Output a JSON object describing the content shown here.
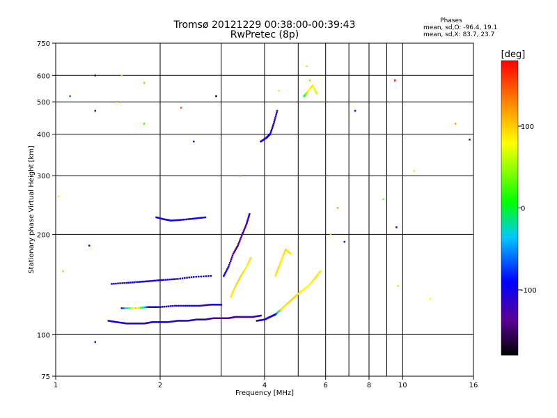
{
  "chart_data": {
    "type": "scatter",
    "title": "Tromsø 20121229 00:38:00-00:39:43",
    "subtitle": "RwPretec (8p)",
    "xlabel": "Frequency [MHz]",
    "ylabel": "Stationary phase Virtual Height [km]",
    "x_scale": "log",
    "y_scale": "log",
    "xlim": [
      1,
      16
    ],
    "ylim": [
      75,
      750
    ],
    "x_ticks": [
      1,
      2,
      4,
      6,
      8,
      10,
      16
    ],
    "x_tick_labels": [
      "1",
      "2",
      "4",
      "6",
      "8",
      "10",
      "16"
    ],
    "x_grid": [
      1,
      2,
      3,
      4,
      5,
      6,
      7,
      8,
      9,
      10,
      16
    ],
    "y_ticks": [
      75,
      100,
      200,
      300,
      400,
      500,
      600,
      750
    ],
    "y_tick_labels": [
      "75",
      "100",
      "200",
      "300",
      "400",
      "500",
      "600",
      "750"
    ],
    "y_grid": [
      100,
      200,
      300,
      400,
      500,
      600
    ],
    "grid": true,
    "stats": {
      "heading": "Phases",
      "line_o": "mean, sd,O: -96.4, 19.1",
      "line_x": "mean, sd,X:  83.7, 23.7"
    },
    "colorbar": {
      "label": "[deg]",
      "range": [
        -180,
        180
      ],
      "ticks": [
        100,
        0,
        -100
      ],
      "tick_labels": [
        "100",
        "0",
        "-100"
      ]
    },
    "series": [
      {
        "freq": [
          1.45,
          1.6,
          1.75,
          1.9,
          2.05,
          2.25,
          2.5,
          2.8
        ],
        "height": [
          142,
          143,
          144,
          145,
          146,
          147,
          149,
          150
        ],
        "phase": [
          -100,
          -105,
          -95,
          -110,
          -100,
          -98,
          -105,
          -100
        ]
      },
      {
        "freq": [
          1.42,
          1.5,
          1.6,
          1.7,
          1.8,
          1.9,
          2.0,
          2.1,
          2.25,
          2.4,
          2.55,
          2.7,
          2.85,
          3.0,
          3.15,
          3.3,
          3.5,
          3.7,
          3.9
        ],
        "height": [
          110,
          109,
          108,
          108,
          108,
          109,
          109,
          109,
          110,
          110,
          111,
          111,
          112,
          112,
          112,
          113,
          113,
          113,
          114
        ],
        "phase": [
          -110,
          -100,
          -115,
          -105,
          -120,
          -110,
          -100,
          -115,
          -108,
          -120,
          -105,
          -115,
          -130,
          -140,
          -135,
          -125,
          -130,
          -120,
          -115
        ]
      },
      {
        "freq": [
          1.55,
          1.7,
          1.85,
          2.0,
          2.2,
          2.4,
          2.6,
          2.8,
          3.0
        ],
        "height": [
          120,
          120,
          121,
          121,
          122,
          122,
          122,
          123,
          123
        ],
        "phase": [
          -95,
          110,
          -105,
          -100,
          -110,
          -90,
          -115,
          -105,
          -100
        ]
      },
      {
        "freq": [
          1.95,
          2.05,
          2.15,
          2.3,
          2.5,
          2.7
        ],
        "height": [
          225,
          222,
          220,
          221,
          223,
          225
        ],
        "phase": [
          -95,
          -110,
          -90,
          -100,
          -95,
          -85
        ]
      },
      {
        "freq": [
          3.05,
          3.15,
          3.25,
          3.35,
          3.45,
          3.55,
          3.62
        ],
        "height": [
          150,
          160,
          175,
          185,
          200,
          215,
          230
        ],
        "phase": [
          -95,
          -120,
          -140,
          -150,
          -135,
          -125,
          -110
        ]
      },
      {
        "freq": [
          3.2,
          3.3,
          3.42,
          3.55,
          3.65
        ],
        "height": [
          130,
          140,
          150,
          160,
          170
        ],
        "phase": [
          90,
          95,
          100,
          85,
          92
        ]
      },
      {
        "freq": [
          3.8,
          4.0,
          4.15,
          4.3,
          4.5,
          4.7,
          4.9,
          5.1,
          5.35,
          5.6,
          5.8
        ],
        "height": [
          110,
          111,
          113,
          115,
          120,
          125,
          130,
          135,
          140,
          148,
          155
        ],
        "phase": [
          -110,
          -105,
          -100,
          -95,
          90,
          95,
          100,
          85,
          80,
          92,
          88
        ]
      },
      {
        "freq": [
          4.3,
          4.4,
          4.5,
          4.6,
          4.75
        ],
        "height": [
          150,
          160,
          170,
          180,
          175
        ],
        "phase": [
          90,
          95,
          85,
          95,
          88
        ]
      },
      {
        "freq": [
          3.9,
          4.05,
          4.15,
          4.25,
          4.35
        ],
        "height": [
          380,
          390,
          400,
          430,
          470
        ],
        "phase": [
          -110,
          -105,
          -100,
          -120,
          -110
        ]
      },
      {
        "freq": [
          5.2,
          5.35,
          5.5,
          5.65
        ],
        "height": [
          520,
          540,
          560,
          530
        ],
        "phase": [
          0,
          80,
          90,
          60
        ]
      }
    ],
    "scattered": {
      "freq": [
        1.02,
        1.05,
        1.1,
        1.25,
        1.3,
        1.3,
        1.3,
        1.5,
        1.55,
        1.8,
        1.8,
        2.3,
        2.5,
        2.9,
        3.4,
        4.4,
        5.3,
        5.4,
        6.2,
        6.5,
        6.8,
        7.3,
        8.8,
        9.5,
        9.6,
        9.7,
        10.8,
        12.0,
        14.2,
        15.6
      ],
      "height": [
        260,
        155,
        520,
        185,
        470,
        600,
        95,
        500,
        600,
        430,
        570,
        480,
        380,
        520,
        300,
        540,
        640,
        580,
        200,
        240,
        190,
        470,
        255,
        580,
        210,
        140,
        310,
        128,
        430,
        385
      ],
      "phase": [
        70,
        40,
        -60,
        -100,
        -110,
        -100,
        -80,
        120,
        100,
        20,
        30,
        150,
        -100,
        -200,
        10,
        90,
        60,
        40,
        100,
        120,
        -110,
        -90,
        40,
        175,
        -100,
        100,
        90,
        80,
        120,
        -110
      ]
    }
  }
}
